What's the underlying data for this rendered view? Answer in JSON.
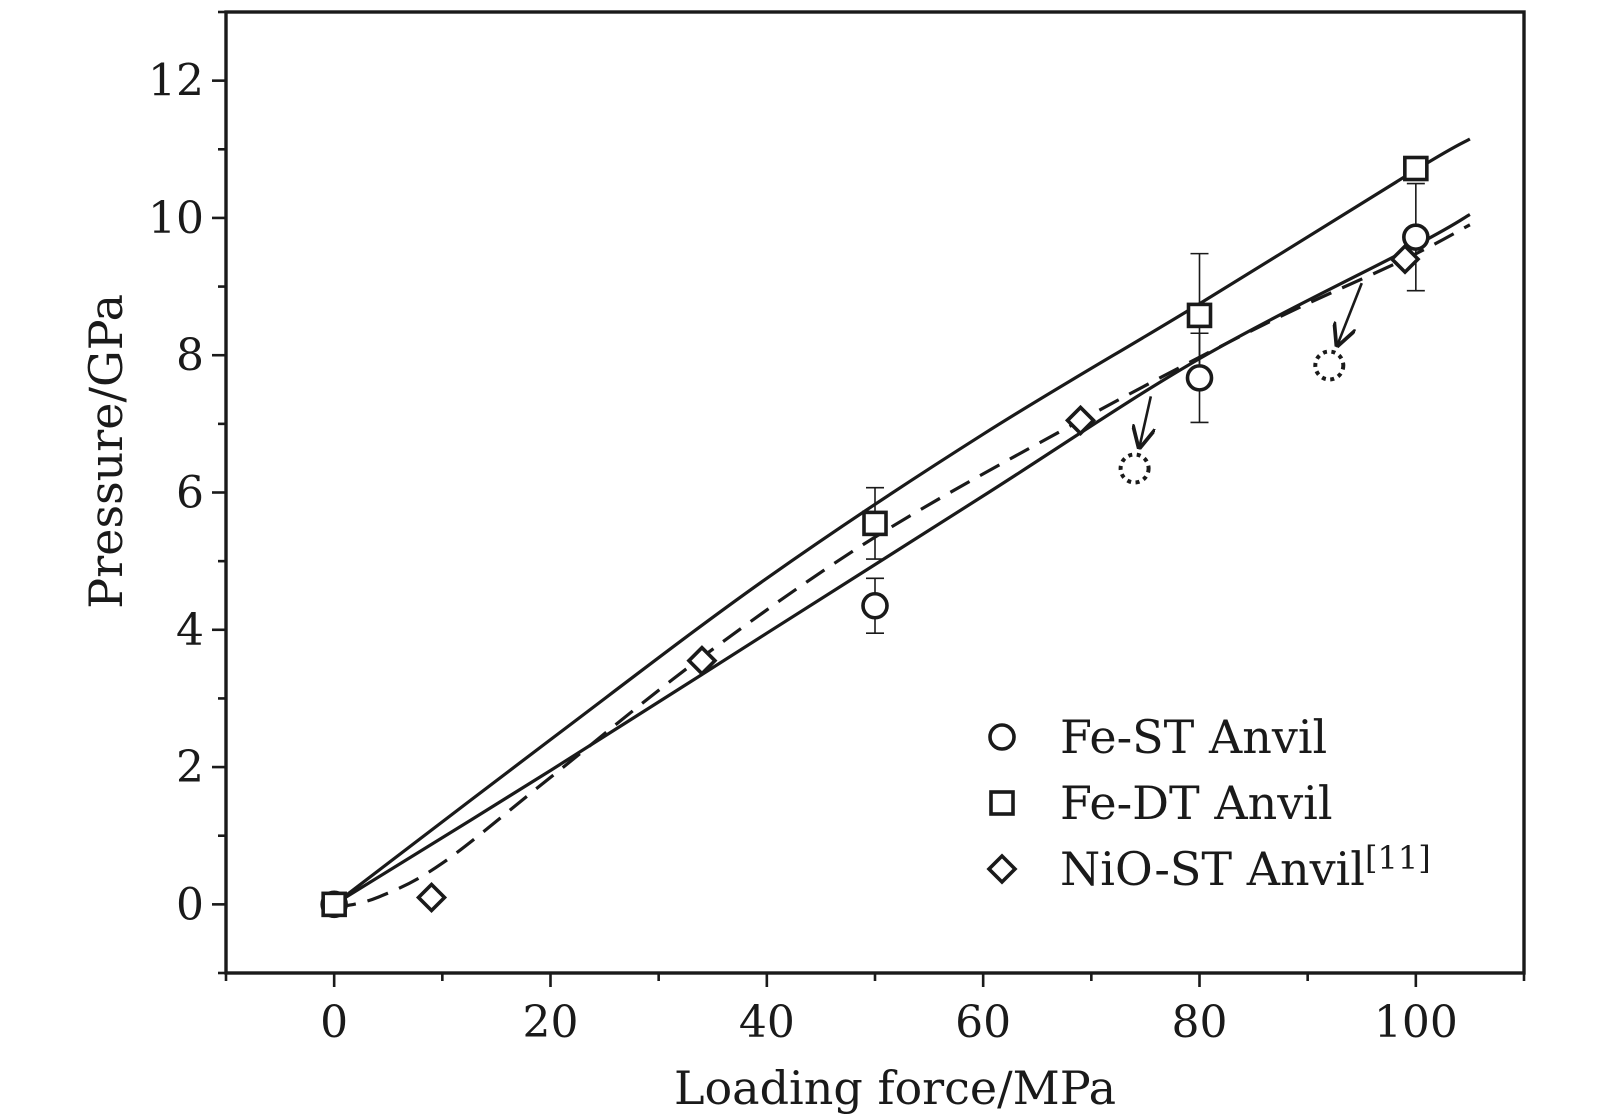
{
  "chart_data": {
    "type": "scatter",
    "title": "",
    "xlabel": "Loading force/MPa",
    "ylabel": "Pressure/GPa",
    "xlim": [
      -10,
      110
    ],
    "ylim": [
      -1,
      13
    ],
    "xticks": [
      0,
      20,
      40,
      60,
      80,
      100
    ],
    "yticks": [
      0,
      2,
      4,
      6,
      8,
      10,
      12
    ],
    "grid": false,
    "legend_position": "bottom-right",
    "series": [
      {
        "name": "Fe-ST Anvil",
        "marker": "circle",
        "points": [
          {
            "x": 0,
            "y": 0.0,
            "err": 0.15
          },
          {
            "x": 50,
            "y": 4.35,
            "err": 0.4
          },
          {
            "x": 80,
            "y": 7.67,
            "err": 0.65
          },
          {
            "x": 100,
            "y": 9.72,
            "err": 0.78
          }
        ],
        "fit": {
          "style": "solid",
          "x": [
            0,
            20,
            40,
            60,
            80,
            100,
            105
          ],
          "y": [
            0,
            1.95,
            3.95,
            5.95,
            7.95,
            9.6,
            10.05
          ]
        }
      },
      {
        "name": "Fe-DT Anvil",
        "marker": "square",
        "points": [
          {
            "x": 0,
            "y": 0.0,
            "err": 0.15
          },
          {
            "x": 50,
            "y": 5.55,
            "err": 0.52
          },
          {
            "x": 80,
            "y": 8.58,
            "err": 0.9
          },
          {
            "x": 100,
            "y": 10.72,
            "err": 0.12
          }
        ],
        "fit": {
          "style": "solid",
          "x": [
            0,
            20,
            40,
            60,
            80,
            100,
            105
          ],
          "y": [
            0,
            2.4,
            4.75,
            6.85,
            8.75,
            10.7,
            11.15
          ]
        }
      },
      {
        "name": "NiO-ST Anvil",
        "name_superscript": "[11]",
        "marker": "diamond",
        "points": [
          {
            "x": 9,
            "y": 0.1
          },
          {
            "x": 34,
            "y": 3.55
          },
          {
            "x": 69,
            "y": 7.05
          },
          {
            "x": 99,
            "y": 9.4
          }
        ],
        "fit": {
          "style": "dashed",
          "x": [
            0,
            4,
            10,
            20,
            34,
            50,
            69,
            86,
            99,
            105
          ],
          "y": [
            -0.05,
            0.1,
            0.6,
            1.85,
            3.6,
            5.35,
            7.05,
            8.45,
            9.4,
            9.9
          ]
        }
      }
    ],
    "annotations": [
      {
        "type": "dotted-circle",
        "x": 74,
        "y": 6.35,
        "arrow_from": {
          "x": 75.5,
          "y": 7.4
        }
      },
      {
        "type": "dotted-circle",
        "x": 92,
        "y": 7.85,
        "arrow_from": {
          "x": 95,
          "y": 9.05
        }
      }
    ]
  }
}
